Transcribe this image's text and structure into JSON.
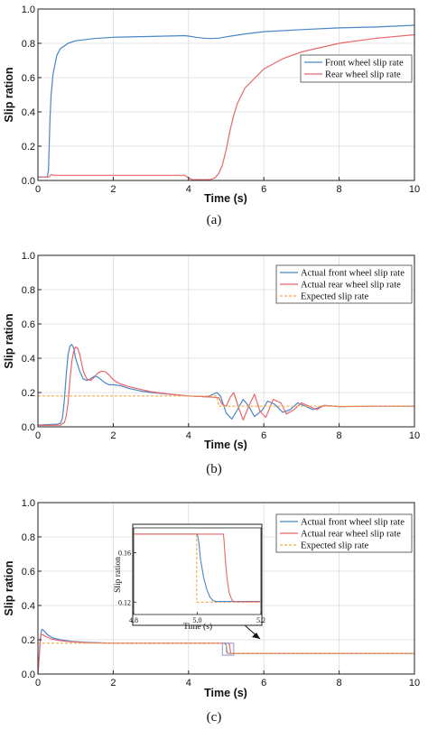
{
  "colors": {
    "front": "#4a86c8",
    "rear": "#e8686a",
    "expected": "#f4a944",
    "grid": "#dcdcdc",
    "axis": "#222222",
    "box": "#9a8fd0"
  },
  "chart_data": [
    {
      "type": "line",
      "caption": "(a)",
      "xlabel": "Time (s)",
      "ylabel": "Slip ration",
      "xlim": [
        0,
        10
      ],
      "ylim": [
        0,
        1
      ],
      "xticks": [
        "0",
        "2",
        "4",
        "6",
        "8",
        "10"
      ],
      "yticks": [
        "0.0",
        "0.2",
        "0.4",
        "0.6",
        "0.8",
        "1.0"
      ],
      "grid": true,
      "legend_position": "right",
      "series": [
        {
          "name": "Front wheel slip rate",
          "color_key": "front",
          "x": [
            0,
            0.25,
            0.28,
            0.3,
            0.32,
            0.35,
            0.4,
            0.5,
            0.6,
            0.8,
            1.0,
            1.5,
            2.0,
            3.0,
            3.9,
            4.0,
            4.2,
            4.4,
            4.6,
            4.8,
            5.0,
            5.5,
            6.0,
            7.0,
            8.0,
            9.0,
            10.0
          ],
          "y": [
            0.02,
            0.02,
            0.06,
            0.2,
            0.35,
            0.5,
            0.62,
            0.73,
            0.77,
            0.8,
            0.815,
            0.828,
            0.835,
            0.84,
            0.845,
            0.842,
            0.835,
            0.83,
            0.828,
            0.83,
            0.838,
            0.855,
            0.868,
            0.88,
            0.89,
            0.895,
            0.905
          ]
        },
        {
          "name": "Rear wheel slip rate",
          "color_key": "rear",
          "x": [
            0,
            0.3,
            0.35,
            0.4,
            0.5,
            1.0,
            2.0,
            3.0,
            3.9,
            4.0,
            4.1,
            4.3,
            4.5,
            4.6,
            4.7,
            4.8,
            4.9,
            5.0,
            5.1,
            5.2,
            5.3,
            5.5,
            6.0,
            6.5,
            7.0,
            8.0,
            9.0,
            10.0
          ],
          "y": [
            0.02,
            0.02,
            0.035,
            0.03,
            0.03,
            0.03,
            0.03,
            0.03,
            0.03,
            0.015,
            0.005,
            0.005,
            0.005,
            0.007,
            0.015,
            0.04,
            0.09,
            0.18,
            0.29,
            0.38,
            0.45,
            0.54,
            0.65,
            0.71,
            0.75,
            0.8,
            0.83,
            0.85
          ]
        }
      ]
    },
    {
      "type": "line",
      "caption": "(b)",
      "xlabel": "Time (s)",
      "ylabel": "Slip ration",
      "xlim": [
        0,
        10
      ],
      "ylim": [
        0,
        1
      ],
      "xticks": [
        "0",
        "2",
        "4",
        "6",
        "8",
        "10"
      ],
      "yticks": [
        "0.0",
        "0.2",
        "0.4",
        "0.6",
        "0.8",
        "1.0"
      ],
      "grid": true,
      "legend_position": "top-right",
      "series": [
        {
          "name": "Actual front wheel slip rate",
          "color_key": "front",
          "x": [
            0,
            0.5,
            0.6,
            0.65,
            0.7,
            0.75,
            0.8,
            0.85,
            0.9,
            0.95,
            1.0,
            1.1,
            1.2,
            1.3,
            1.4,
            1.5,
            1.6,
            1.7,
            1.8,
            1.9,
            2.0,
            2.2,
            2.4,
            2.7,
            3.0,
            3.5,
            4.0,
            4.5,
            4.75,
            4.85,
            5.0,
            5.15,
            5.3,
            5.45,
            5.6,
            5.75,
            5.95,
            6.1,
            6.3,
            6.5,
            6.7,
            6.9,
            7.1,
            7.3,
            7.6,
            8.0,
            9.0,
            10.0
          ],
          "y": [
            0.01,
            0.015,
            0.02,
            0.05,
            0.15,
            0.3,
            0.42,
            0.47,
            0.48,
            0.46,
            0.4,
            0.33,
            0.28,
            0.27,
            0.28,
            0.295,
            0.29,
            0.27,
            0.255,
            0.245,
            0.245,
            0.24,
            0.225,
            0.21,
            0.2,
            0.19,
            0.18,
            0.175,
            0.2,
            0.18,
            0.08,
            0.045,
            0.1,
            0.16,
            0.12,
            0.06,
            0.095,
            0.15,
            0.13,
            0.085,
            0.1,
            0.14,
            0.12,
            0.1,
            0.125,
            0.118,
            0.12,
            0.12
          ]
        },
        {
          "name": "Actual rear wheel slip rate",
          "color_key": "rear",
          "x": [
            0,
            0.6,
            0.7,
            0.75,
            0.8,
            0.85,
            0.9,
            0.95,
            1.0,
            1.05,
            1.1,
            1.15,
            1.2,
            1.25,
            1.3,
            1.4,
            1.5,
            1.6,
            1.7,
            1.8,
            1.9,
            2.0,
            2.1,
            2.2,
            2.4,
            2.7,
            3.0,
            3.5,
            4.0,
            4.5,
            4.8,
            4.9,
            5.0,
            5.1,
            5.2,
            5.35,
            5.45,
            5.6,
            5.75,
            5.9,
            6.05,
            6.25,
            6.45,
            6.6,
            6.8,
            7.0,
            7.2,
            7.4,
            7.6,
            8.0,
            9.0,
            10.0
          ],
          "y": [
            0.008,
            0.01,
            0.025,
            0.06,
            0.14,
            0.27,
            0.38,
            0.44,
            0.465,
            0.46,
            0.43,
            0.38,
            0.33,
            0.3,
            0.28,
            0.27,
            0.29,
            0.315,
            0.325,
            0.32,
            0.3,
            0.275,
            0.26,
            0.25,
            0.235,
            0.22,
            0.205,
            0.19,
            0.18,
            0.175,
            0.17,
            0.13,
            0.12,
            0.17,
            0.2,
            0.1,
            0.04,
            0.12,
            0.19,
            0.09,
            0.055,
            0.16,
            0.14,
            0.075,
            0.1,
            0.14,
            0.12,
            0.1,
            0.125,
            0.118,
            0.12,
            0.12
          ]
        },
        {
          "name": "Expected slip rate",
          "color_key": "expected",
          "dashed": true,
          "x": [
            0,
            4.75,
            4.8,
            10
          ],
          "y": [
            0.18,
            0.18,
            0.12,
            0.12
          ]
        }
      ]
    },
    {
      "type": "line",
      "caption": "(c)",
      "xlabel": "Time (s)",
      "ylabel": "Slip ration",
      "xlim": [
        0,
        10
      ],
      "ylim": [
        0,
        1
      ],
      "xticks": [
        "0",
        "2",
        "4",
        "6",
        "8",
        "10"
      ],
      "yticks": [
        "0.0",
        "0.2",
        "0.4",
        "0.6",
        "0.8",
        "1.0"
      ],
      "grid": true,
      "legend_position": "top-right",
      "series": [
        {
          "name": "Actual front wheel slip rate",
          "color_key": "front",
          "x": [
            0,
            0.03,
            0.06,
            0.1,
            0.15,
            0.25,
            0.4,
            0.6,
            0.9,
            1.3,
            2.0,
            3.0,
            4.0,
            4.95,
            5.0,
            5.02,
            5.05,
            5.15,
            6.0,
            8.0,
            10.0
          ],
          "y": [
            0.0,
            0.1,
            0.2,
            0.26,
            0.255,
            0.23,
            0.21,
            0.2,
            0.19,
            0.185,
            0.18,
            0.18,
            0.18,
            0.18,
            0.17,
            0.13,
            0.12,
            0.12,
            0.12,
            0.12,
            0.12
          ]
        },
        {
          "name": "Actual rear wheel slip rate",
          "color_key": "rear",
          "x": [
            0,
            0.02,
            0.05,
            0.08,
            0.12,
            0.2,
            0.35,
            0.6,
            0.9,
            1.3,
            2.0,
            3.0,
            4.0,
            5.0,
            5.08,
            5.1,
            5.12,
            5.15,
            5.2,
            6.0,
            8.0,
            10.0
          ],
          "y": [
            0.0,
            0.05,
            0.15,
            0.23,
            0.23,
            0.22,
            0.205,
            0.195,
            0.188,
            0.183,
            0.18,
            0.18,
            0.18,
            0.18,
            0.18,
            0.15,
            0.125,
            0.12,
            0.12,
            0.12,
            0.12,
            0.12
          ]
        },
        {
          "name": "Expected slip rate",
          "color_key": "expected",
          "dashed": true,
          "x": [
            0,
            5.0,
            5.0,
            10.0
          ],
          "y": [
            0.18,
            0.18,
            0.12,
            0.12
          ]
        }
      ],
      "inset": {
        "xlabel": "Time (s)",
        "ylabel": "Slip ration",
        "xlim": [
          4.8,
          5.2
        ],
        "ylim": [
          0.11,
          0.18
        ],
        "xticks": [
          4.8,
          5.0,
          5.2
        ],
        "xtick_labels": [
          "4.8",
          "5.0",
          "5.2"
        ],
        "yticks": [
          0.12,
          0.16
        ],
        "ytick_labels": [
          "0.12",
          "0.16"
        ],
        "zoom_region": {
          "x": [
            4.9,
            5.2
          ],
          "y": [
            0.11,
            0.18
          ]
        },
        "series": [
          {
            "color_key": "expected",
            "dashed": true,
            "x": [
              4.8,
              4.998,
              4.998,
              5.2
            ],
            "y": [
              0.175,
              0.175,
              0.12,
              0.12
            ]
          },
          {
            "color_key": "front",
            "x": [
              4.8,
              5.0,
              5.005,
              5.01,
              5.02,
              5.03,
              5.04,
              5.05,
              5.06,
              5.08,
              5.2
            ],
            "y": [
              0.175,
              0.175,
              0.168,
              0.155,
              0.14,
              0.13,
              0.124,
              0.121,
              0.1205,
              0.1205,
              0.1205
            ]
          },
          {
            "color_key": "rear",
            "x": [
              4.8,
              5.082,
              5.084,
              5.088,
              5.093,
              5.1,
              5.108,
              5.115,
              5.125,
              5.2
            ],
            "y": [
              0.175,
              0.175,
              0.17,
              0.155,
              0.14,
              0.128,
              0.122,
              0.1205,
              0.1202,
              0.1202
            ]
          }
        ]
      }
    }
  ]
}
